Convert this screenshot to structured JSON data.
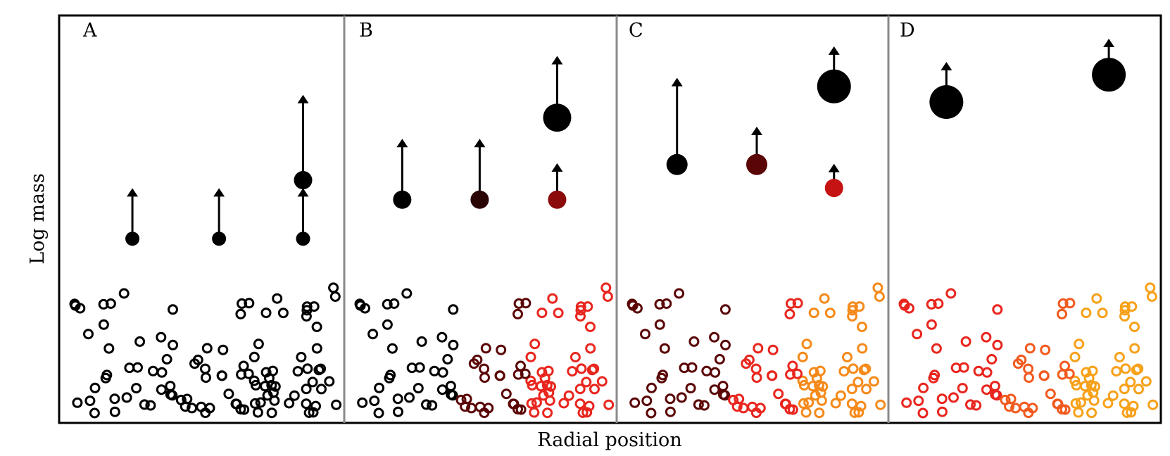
{
  "figure": {
    "xlabel": "Radial position",
    "ylabel": "Log mass"
  },
  "colors": {
    "frame": "#000000",
    "divider": "#8a8a8a",
    "bodies": [
      "#000000",
      "#2a0404",
      "#5a0606",
      "#8b0a0a",
      "#c51313",
      "#e8261e",
      "#f15a1e",
      "#f58a1a",
      "#f7a11a"
    ]
  },
  "chart_data": {
    "type": "scatter",
    "description_units": "radial position 0-1 within panel, log mass 0-1",
    "panels": [
      {
        "label": "A",
        "large_bodies": [
          {
            "r": 0.22,
            "m": 0.45,
            "size": 1,
            "color_idx": 0,
            "arrow": 0.1
          },
          {
            "r": 0.55,
            "m": 0.45,
            "size": 1,
            "color_idx": 0,
            "arrow": 0.1
          },
          {
            "r": 0.87,
            "m": 0.45,
            "size": 1,
            "color_idx": 0,
            "arrow": 0.1
          },
          {
            "r": 0.87,
            "m": 0.6,
            "size": 2,
            "color_idx": 0,
            "arrow": 0.18
          }
        ]
      },
      {
        "label": "B",
        "large_bodies": [
          {
            "r": 0.17,
            "m": 0.55,
            "size": 2,
            "color_idx": 0,
            "arrow": 0.12
          },
          {
            "r": 0.48,
            "m": 0.55,
            "size": 2,
            "color_idx": 1,
            "arrow": 0.12
          },
          {
            "r": 0.79,
            "m": 0.55,
            "size": 2,
            "color_idx": 3,
            "arrow": 0.06
          },
          {
            "r": 0.79,
            "m": 0.76,
            "size": 4,
            "color_idx": 0,
            "arrow": 0.11
          }
        ]
      },
      {
        "label": "C",
        "large_bodies": [
          {
            "r": 0.18,
            "m": 0.64,
            "size": 3,
            "color_idx": 0,
            "arrow": 0.18
          },
          {
            "r": 0.5,
            "m": 0.64,
            "size": 3,
            "color_idx": 2,
            "arrow": 0.06
          },
          {
            "r": 0.81,
            "m": 0.58,
            "size": 2,
            "color_idx": 4,
            "arrow": 0.03
          },
          {
            "r": 0.81,
            "m": 0.84,
            "size": 5,
            "color_idx": 0,
            "arrow": 0.05
          }
        ]
      },
      {
        "label": "D",
        "large_bodies": [
          {
            "r": 0.17,
            "m": 0.8,
            "size": 5,
            "color_idx": 0,
            "arrow": 0.05
          },
          {
            "r": 0.82,
            "m": 0.87,
            "size": 5,
            "color_idx": 0,
            "arrow": 0.04
          }
        ]
      }
    ],
    "small_body_color_scheme": [
      {
        "label": "A",
        "colors": [
          0,
          0,
          0
        ]
      },
      {
        "label": "B",
        "colors": [
          0,
          2,
          5
        ]
      },
      {
        "label": "C",
        "colors": [
          2,
          5,
          7
        ]
      },
      {
        "label": "D",
        "colors": [
          5,
          6,
          8
        ]
      }
    ]
  }
}
